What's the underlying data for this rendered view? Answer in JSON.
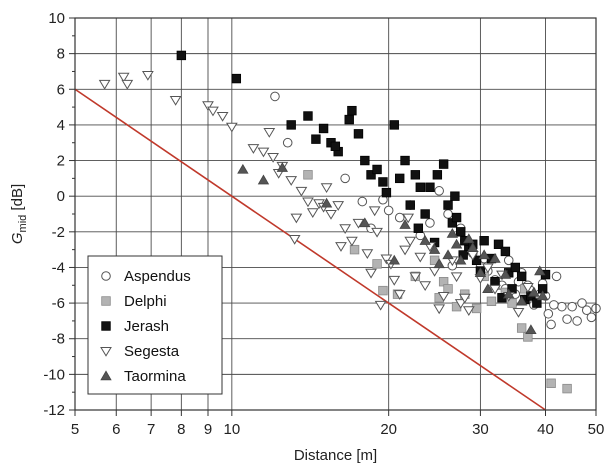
{
  "chart_data": {
    "type": "scatter",
    "x_scale": "log",
    "xlim": [
      5,
      50
    ],
    "ylim": [
      -12,
      10
    ],
    "x_ticks": [
      5,
      6,
      7,
      8,
      9,
      10,
      20,
      30,
      40,
      50
    ],
    "x_tick_labels": [
      "5",
      "6",
      "7",
      "8",
      "9",
      "10",
      "20",
      "30",
      "40",
      "50"
    ],
    "y_ticks": [
      -12,
      -10,
      -8,
      -6,
      -4,
      -2,
      0,
      2,
      4,
      6,
      8,
      10
    ],
    "y_tick_labels": [
      "-12",
      "-10",
      "-8",
      "-6",
      "-4",
      "-2",
      "0",
      "2",
      "4",
      "6",
      "8",
      "10"
    ],
    "xlabel": "Distance [m]",
    "ylabel_main": "G",
    "ylabel_sub": "mid",
    "ylabel_unit": " [dB]",
    "grid": true,
    "legend_position": "bottom-left",
    "reference_line": {
      "color": "#c0392b",
      "x": [
        5,
        40
      ],
      "y": [
        6,
        -12
      ]
    },
    "series": [
      {
        "name": "Aspendus",
        "marker": "circle-open",
        "color": "#555555",
        "points": [
          [
            12.1,
            5.6
          ],
          [
            12.8,
            3.0
          ],
          [
            16.5,
            1.0
          ],
          [
            17.8,
            -0.3
          ],
          [
            18.5,
            -1.8
          ],
          [
            19.5,
            -0.2
          ],
          [
            20.0,
            -0.8
          ],
          [
            21.0,
            -1.2
          ],
          [
            22.0,
            -0.5
          ],
          [
            24.0,
            -1.5
          ],
          [
            25.0,
            0.3
          ],
          [
            26.0,
            -1.0
          ],
          [
            28.0,
            -2.5
          ],
          [
            29.0,
            -3.2
          ],
          [
            30.0,
            -3.8
          ],
          [
            31.0,
            -4.2
          ],
          [
            32.0,
            -4.7
          ],
          [
            33.0,
            -5.0
          ],
          [
            34.0,
            -3.6
          ],
          [
            35.0,
            -5.5
          ],
          [
            36.0,
            -4.3
          ],
          [
            37.0,
            -5.0
          ],
          [
            38.0,
            -6.1
          ],
          [
            39.0,
            -5.5
          ],
          [
            40.0,
            -5.6
          ],
          [
            40.5,
            -6.6
          ],
          [
            41.0,
            -7.2
          ],
          [
            42.0,
            -4.5
          ],
          [
            43.0,
            -6.2
          ],
          [
            44.0,
            -6.9
          ],
          [
            45.0,
            -6.2
          ],
          [
            46.0,
            -7.0
          ],
          [
            47.0,
            -6.0
          ],
          [
            48.0,
            -6.4
          ],
          [
            49.0,
            -6.8
          ],
          [
            50.0,
            -6.3
          ],
          [
            33.5,
            -5.2
          ],
          [
            36.5,
            -5.8
          ],
          [
            39.5,
            -4.9
          ],
          [
            30.5,
            -3.5
          ],
          [
            27.5,
            -1.8
          ],
          [
            23.0,
            -2.2
          ],
          [
            26.5,
            -3.9
          ],
          [
            41.5,
            -6.1
          ],
          [
            37.5,
            -5.3
          ],
          [
            35.5,
            -4.8
          ]
        ]
      },
      {
        "name": "Delphi",
        "marker": "square",
        "color": "#b3b3b3",
        "points": [
          [
            14.0,
            1.2
          ],
          [
            17.2,
            -3.0
          ],
          [
            19.0,
            -3.8
          ],
          [
            19.5,
            -5.3
          ],
          [
            20.8,
            -5.5
          ],
          [
            22.5,
            -4.5
          ],
          [
            24.5,
            -3.6
          ],
          [
            25.5,
            -4.8
          ],
          [
            26.0,
            -5.2
          ],
          [
            27.0,
            -6.2
          ],
          [
            28.0,
            -5.5
          ],
          [
            29.5,
            -6.3
          ],
          [
            30.5,
            -4.5
          ],
          [
            32.0,
            -5.0
          ],
          [
            33.5,
            -5.4
          ],
          [
            34.5,
            -6.0
          ],
          [
            36.0,
            -7.4
          ],
          [
            37.0,
            -7.9
          ],
          [
            38.0,
            -5.7
          ],
          [
            36.5,
            -5.2
          ],
          [
            41.0,
            -10.5
          ],
          [
            44.0,
            -10.8
          ],
          [
            31.5,
            -5.9
          ],
          [
            25.0,
            -5.7
          ]
        ]
      },
      {
        "name": "Jerash",
        "marker": "square",
        "color": "#111111",
        "points": [
          [
            8.0,
            7.9
          ],
          [
            10.2,
            6.6
          ],
          [
            13.0,
            4.0
          ],
          [
            14.0,
            4.5
          ],
          [
            14.5,
            3.2
          ],
          [
            15.0,
            3.8
          ],
          [
            15.5,
            3.0
          ],
          [
            16.0,
            2.5
          ],
          [
            16.8,
            4.3
          ],
          [
            17.0,
            4.8
          ],
          [
            17.5,
            3.5
          ],
          [
            18.0,
            2.0
          ],
          [
            18.5,
            1.2
          ],
          [
            19.0,
            1.5
          ],
          [
            19.5,
            0.8
          ],
          [
            20.5,
            4.0
          ],
          [
            21.0,
            1.0
          ],
          [
            21.5,
            2.0
          ],
          [
            22.0,
            -0.5
          ],
          [
            22.5,
            1.2
          ],
          [
            23.0,
            0.5
          ],
          [
            23.5,
            -1.0
          ],
          [
            24.0,
            0.5
          ],
          [
            24.8,
            1.2
          ],
          [
            25.5,
            1.8
          ],
          [
            26.0,
            -0.5
          ],
          [
            26.5,
            -1.5
          ],
          [
            27.0,
            -1.2
          ],
          [
            27.5,
            -2.0
          ],
          [
            28.0,
            -2.5
          ],
          [
            28.5,
            -3.0
          ],
          [
            29.0,
            -2.7
          ],
          [
            29.5,
            -3.6
          ],
          [
            30.0,
            -4.2
          ],
          [
            30.5,
            -2.5
          ],
          [
            31.5,
            -3.5
          ],
          [
            32.0,
            -4.8
          ],
          [
            32.5,
            -2.7
          ],
          [
            33.5,
            -3.1
          ],
          [
            34.0,
            -4.3
          ],
          [
            34.5,
            -5.2
          ],
          [
            35.0,
            -4.0
          ],
          [
            36.0,
            -4.5
          ],
          [
            36.5,
            -5.8
          ],
          [
            37.5,
            -5.6
          ],
          [
            38.5,
            -6.0
          ],
          [
            39.5,
            -5.2
          ],
          [
            40.0,
            -4.4
          ],
          [
            15.8,
            2.8
          ],
          [
            19.8,
            0.2
          ],
          [
            22.8,
            -1.8
          ],
          [
            24.5,
            -2.6
          ],
          [
            27.8,
            -3.3
          ],
          [
            26.8,
            0.0
          ],
          [
            33.0,
            -5.7
          ]
        ]
      },
      {
        "name": "Segesta",
        "marker": "triangle-down-open",
        "color": "#555555",
        "points": [
          [
            5.7,
            6.3
          ],
          [
            6.2,
            6.7
          ],
          [
            6.3,
            6.3
          ],
          [
            6.9,
            6.8
          ],
          [
            7.8,
            5.4
          ],
          [
            9.0,
            5.1
          ],
          [
            9.2,
            4.8
          ],
          [
            9.6,
            4.5
          ],
          [
            10.0,
            3.9
          ],
          [
            11.0,
            2.7
          ],
          [
            11.5,
            2.5
          ],
          [
            11.8,
            3.6
          ],
          [
            12.0,
            2.2
          ],
          [
            12.5,
            1.7
          ],
          [
            13.0,
            0.9
          ],
          [
            13.3,
            -1.2
          ],
          [
            13.6,
            0.3
          ],
          [
            14.0,
            -0.3
          ],
          [
            14.3,
            -0.9
          ],
          [
            14.7,
            -0.4
          ],
          [
            15.0,
            -0.6
          ],
          [
            15.5,
            -1.0
          ],
          [
            16.0,
            -0.5
          ],
          [
            13.2,
            -2.4
          ],
          [
            16.5,
            -1.8
          ],
          [
            17.0,
            -2.5
          ],
          [
            17.5,
            -1.5
          ],
          [
            18.2,
            -3.2
          ],
          [
            18.5,
            -4.3
          ],
          [
            19.0,
            -2.0
          ],
          [
            19.3,
            -6.1
          ],
          [
            19.8,
            -3.5
          ],
          [
            20.5,
            -4.7
          ],
          [
            21.0,
            -5.5
          ],
          [
            21.5,
            -3.0
          ],
          [
            22.0,
            -2.5
          ],
          [
            22.5,
            -4.5
          ],
          [
            23.0,
            -3.4
          ],
          [
            23.5,
            -5.0
          ],
          [
            24.0,
            -2.8
          ],
          [
            24.5,
            -4.2
          ],
          [
            25.0,
            -6.3
          ],
          [
            25.5,
            -5.6
          ],
          [
            26.5,
            -3.6
          ],
          [
            27.0,
            -4.5
          ],
          [
            27.5,
            -6.0
          ],
          [
            28.0,
            -5.7
          ],
          [
            28.5,
            -6.4
          ],
          [
            29.0,
            -3.3
          ],
          [
            30.0,
            -4.6
          ],
          [
            31.0,
            -4.0
          ],
          [
            32.0,
            -5.2
          ],
          [
            33.0,
            -4.4
          ],
          [
            34.0,
            -5.6
          ],
          [
            35.5,
            -6.5
          ],
          [
            37.0,
            -5.1
          ],
          [
            18.8,
            -0.8
          ],
          [
            21.8,
            -1.2
          ],
          [
            15.2,
            0.5
          ],
          [
            12.3,
            1.3
          ],
          [
            20.2,
            -3.8
          ],
          [
            16.2,
            -2.8
          ]
        ]
      },
      {
        "name": "Taormina",
        "marker": "triangle-up",
        "color": "#555555",
        "points": [
          [
            10.5,
            1.5
          ],
          [
            11.5,
            0.9
          ],
          [
            12.5,
            1.6
          ],
          [
            15.2,
            -0.4
          ],
          [
            18.0,
            -1.5
          ],
          [
            20.5,
            -3.6
          ],
          [
            21.5,
            -1.6
          ],
          [
            23.5,
            -2.5
          ],
          [
            24.5,
            -3.0
          ],
          [
            25.0,
            -3.8
          ],
          [
            26.0,
            -3.3
          ],
          [
            27.0,
            -2.7
          ],
          [
            27.5,
            -3.6
          ],
          [
            28.5,
            -2.4
          ],
          [
            29.0,
            -2.9
          ],
          [
            30.0,
            -4.3
          ],
          [
            31.0,
            -5.2
          ],
          [
            32.0,
            -3.5
          ],
          [
            33.5,
            -4.4
          ],
          [
            34.0,
            -5.5
          ],
          [
            36.0,
            -5.9
          ],
          [
            37.5,
            -7.5
          ],
          [
            38.0,
            -5.4
          ],
          [
            39.0,
            -4.2
          ],
          [
            39.5,
            -5.6
          ],
          [
            26.5,
            -2.1
          ],
          [
            30.5,
            -3.3
          ]
        ]
      }
    ]
  }
}
